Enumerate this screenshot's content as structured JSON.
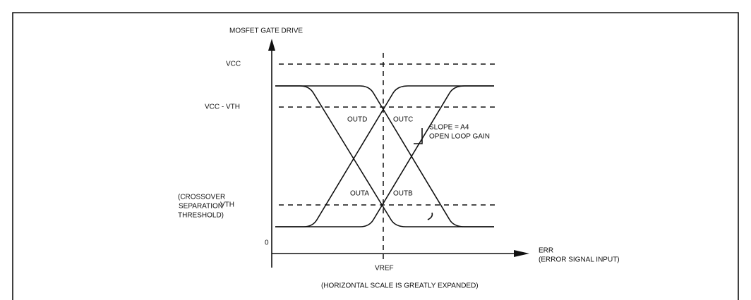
{
  "y_axis": {
    "label": "MOSFET GATE DRIVE",
    "origin": "0",
    "levels": [
      "VCC",
      "VCC - VTH",
      "VTH"
    ],
    "threshold_note": [
      "(CROSSOVER",
      "SEPARATION",
      "THRESHOLD)"
    ]
  },
  "x_axis": {
    "label": "ERR",
    "sublabel": "(ERROR SIGNAL INPUT)",
    "center": "VREF",
    "note": "(HORIZONTAL SCALE IS GREATLY EXPANDED)"
  },
  "curves": [
    "OUTD",
    "OUTC",
    "OUTA",
    "OUTB"
  ],
  "annotation": [
    "SLOPE = A4",
    "OPEN LOOP GAIN"
  ]
}
